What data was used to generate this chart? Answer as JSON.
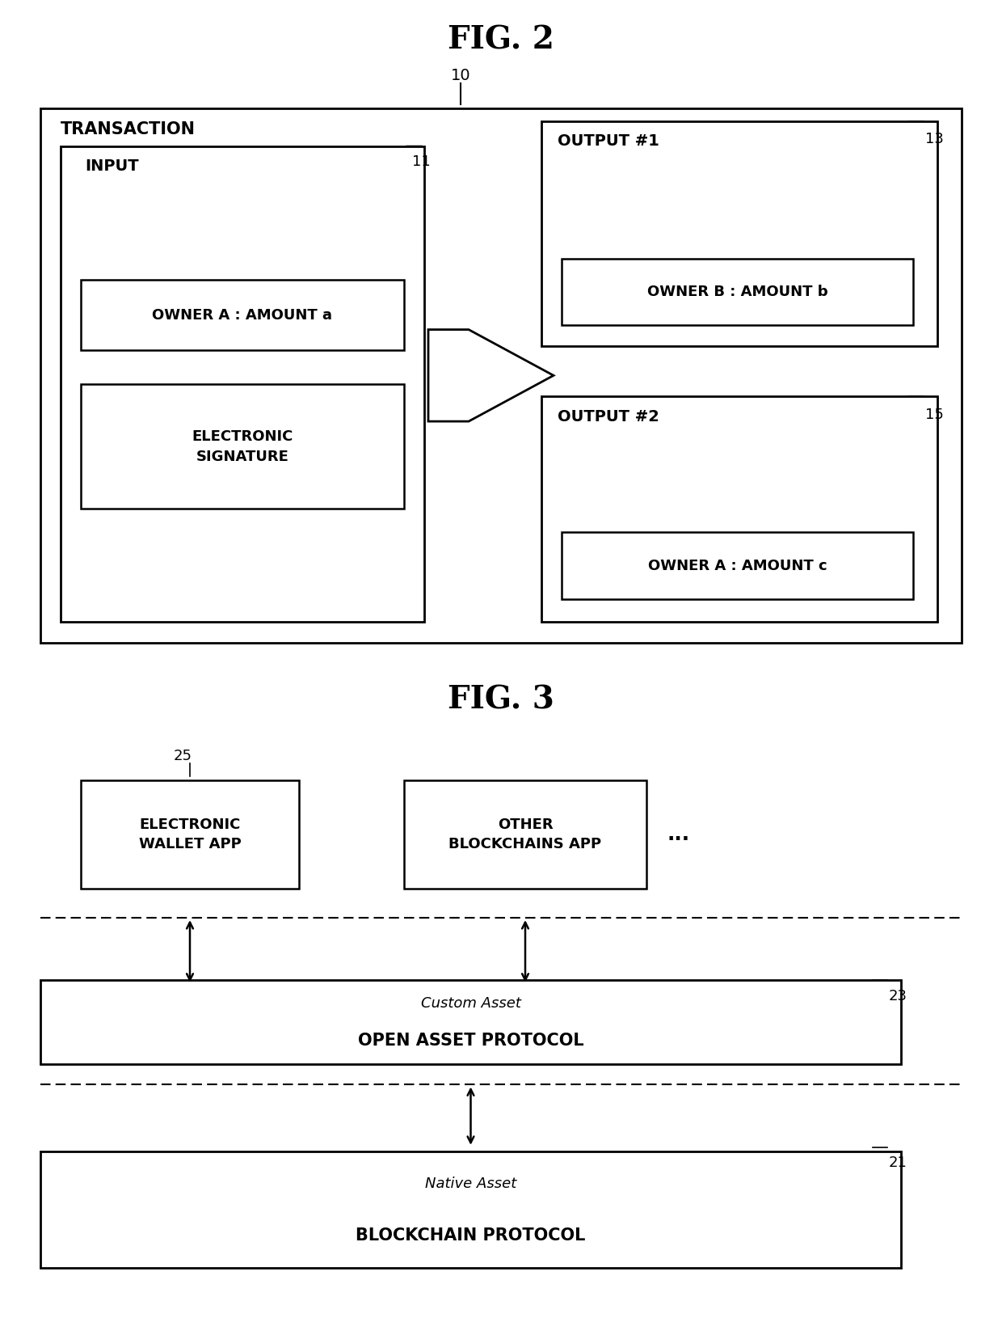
{
  "fig2_title": "FIG. 2",
  "fig3_title": "FIG. 3",
  "bg_color": "#ffffff",
  "label_10": "10",
  "label_11": "11",
  "label_13": "13",
  "label_15": "15",
  "label_21": "21",
  "label_23": "23",
  "label_25": "25",
  "transaction_label": "TRANSACTION",
  "input_label": "INPUT",
  "owner_a_amount_a": "OWNER A : AMOUNT a",
  "electronic_signature": "ELECTRONIC\nSIGNATURE",
  "output1_label": "OUTPUT #1",
  "owner_b_amount_b": "OWNER B : AMOUNT b",
  "output2_label": "OUTPUT #2",
  "owner_a_amount_c": "OWNER A : AMOUNT c",
  "wallet_app_text": "ELECTRONIC\nWALLET APP",
  "blockchains_app_text": "OTHER\nBLOCKCHAINS APP",
  "dots": "...",
  "custom_asset_line1": "Custom Asset",
  "custom_asset_line2": "OPEN ASSET PROTOCOL",
  "native_asset_line1": "Native Asset",
  "native_asset_line2": "BLOCKCHAIN PROTOCOL"
}
